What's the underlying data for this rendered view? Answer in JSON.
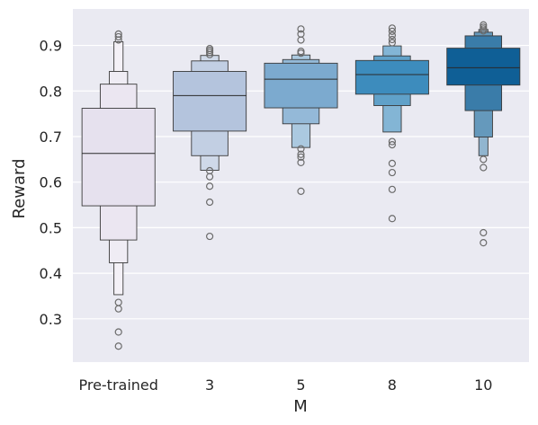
{
  "chart_data": {
    "type": "boxen",
    "xlabel": "M",
    "ylabel": "Reward",
    "ylim": [
      0.205,
      0.98
    ],
    "yticks": [
      0.3,
      0.4,
      0.5,
      0.6,
      0.7,
      0.8,
      0.9
    ],
    "ytick_labels": [
      "0.3",
      "0.4",
      "0.5",
      "0.6",
      "0.7",
      "0.8",
      "0.9"
    ],
    "grid": true,
    "categories": [
      "Pre-trained",
      "3",
      "5",
      "8",
      "10"
    ],
    "series": [
      {
        "category": "Pre-trained",
        "color": "#e6e1ee",
        "median": 0.663,
        "levels": [
          [
            0.548,
            0.762
          ],
          [
            0.473,
            0.815
          ],
          [
            0.423,
            0.843
          ],
          [
            0.353,
            0.908
          ]
        ],
        "outliers": [
          0.925,
          0.919,
          0.912,
          0.336,
          0.322,
          0.271,
          0.24
        ]
      },
      {
        "category": "3",
        "color": "#b4c4dd",
        "median": 0.79,
        "levels": [
          [
            0.712,
            0.843
          ],
          [
            0.658,
            0.866
          ],
          [
            0.626,
            0.878
          ]
        ],
        "outliers": [
          0.893,
          0.889,
          0.885,
          0.88,
          0.625,
          0.612,
          0.591,
          0.556,
          0.481
        ]
      },
      {
        "category": "5",
        "color": "#7caacf",
        "median": 0.826,
        "levels": [
          [
            0.763,
            0.861
          ],
          [
            0.728,
            0.869
          ],
          [
            0.676,
            0.879
          ]
        ],
        "outliers": [
          0.936,
          0.925,
          0.912,
          0.887,
          0.883,
          0.673,
          0.661,
          0.655,
          0.643,
          0.58
        ]
      },
      {
        "category": "8",
        "color": "#3d8cbd",
        "median": 0.836,
        "levels": [
          [
            0.793,
            0.867
          ],
          [
            0.768,
            0.877
          ],
          [
            0.71,
            0.899
          ]
        ],
        "outliers": [
          0.938,
          0.931,
          0.922,
          0.913,
          0.906,
          0.689,
          0.682,
          0.641,
          0.621,
          0.584,
          0.52
        ]
      },
      {
        "category": "10",
        "color": "#0f5f96",
        "median": 0.851,
        "levels": [
          [
            0.813,
            0.894
          ],
          [
            0.757,
            0.921
          ],
          [
            0.699,
            0.929
          ],
          [
            0.658,
            0.935
          ]
        ],
        "outliers": [
          0.945,
          0.94,
          0.936,
          0.932,
          0.65,
          0.632,
          0.489,
          0.467
        ]
      }
    ]
  }
}
